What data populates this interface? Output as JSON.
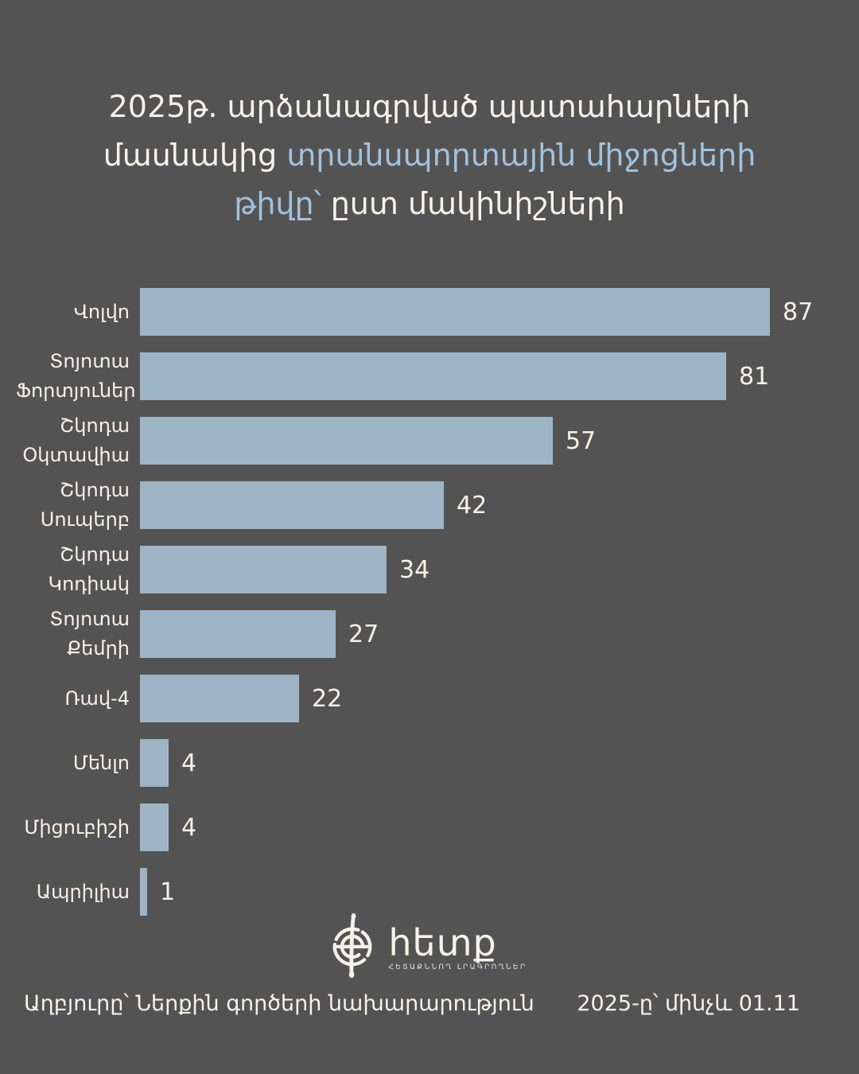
{
  "title": {
    "line1": "2025թ. արձանագրված պատահարների",
    "line2_cream": "մասնակից ",
    "line2_blue": "տրանսպորտային միջոցների",
    "line3_blue": "թիվը՝ ",
    "line3_cream": "ըստ մակինիշների"
  },
  "chart_data": {
    "type": "bar",
    "orientation": "horizontal",
    "title": "2025թ. արձանագրված պատահարների մասնակից տրանսպորտային միջոցների թիվը՝ ըստ մակինիշների",
    "categories": [
      "Վոլվո",
      "Տոյոտա\nՖորտյուներ",
      "Շկոդա\nՕկտավիա",
      "Շկոդա\nՍուպերբ",
      "Շկոդա\nԿոդիակ",
      "Տոյոտա\nՔեմրի",
      "Ռավ-4",
      "Մենլո",
      "Միցուբիշի",
      "Ապրիլիա"
    ],
    "values": [
      87,
      81,
      57,
      42,
      34,
      27,
      22,
      4,
      4,
      1
    ],
    "xlim": [
      0,
      87
    ],
    "grid": false,
    "legend": false,
    "data_labels": true,
    "bar_color": "#9db4c5"
  },
  "logo": {
    "wordmark": "հետք",
    "tagline": "ՀԵՏԱՔՆՆՈՂ ԼՐԱԳՐՈՂՆԵՐ",
    "emblem": "hetq-compass-icon"
  },
  "footer": {
    "source": "Աղբյուրը՝ Ներքին գործերի նախարարություն",
    "period": "2025-ը՝ մինչև 01.11"
  },
  "colors": {
    "background": "#545353",
    "bar": "#9db4c5",
    "text_cream": "#f7f2e9",
    "text_blue": "#a2c2dc"
  }
}
